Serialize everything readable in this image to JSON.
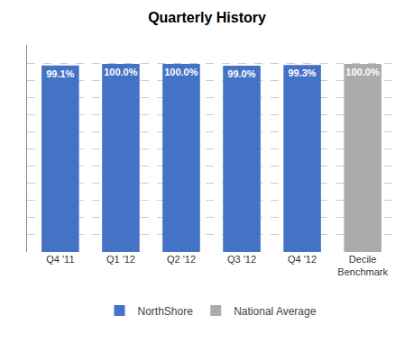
{
  "chart_data": {
    "type": "bar",
    "title": "Quarterly History",
    "categories": [
      "Q4 '11",
      "Q1 '12",
      "Q2 '12",
      "Q3 '12",
      "Q4 '12",
      "Decile\nBenchmark"
    ],
    "series": [
      {
        "name": "NorthShore",
        "color": "#4472C4",
        "values": [
          99.1,
          100.0,
          100.0,
          99.0,
          99.3,
          null
        ],
        "value_labels": [
          "99.1%",
          "100.0%",
          "100.0%",
          "99.0%",
          "99.3%",
          null
        ]
      },
      {
        "name": "National Average",
        "color": "#ABABAB",
        "values": [
          null,
          null,
          null,
          null,
          null,
          100.0
        ],
        "value_labels": [
          null,
          null,
          null,
          null,
          null,
          "100.0%"
        ]
      }
    ],
    "ylim": [
      0,
      110
    ],
    "yticks": [
      0,
      9.090909090909092,
      18.181818181818183,
      27.272727272727273,
      36.36363636363637,
      45.45454545454546,
      54.54545454545455,
      63.63636363636364,
      72.72727272727273,
      81.81818181818183,
      90.90909090909092,
      100
    ],
    "grid": true,
    "tick_labels": "x",
    "data_labels": true,
    "legend": "bottom"
  }
}
